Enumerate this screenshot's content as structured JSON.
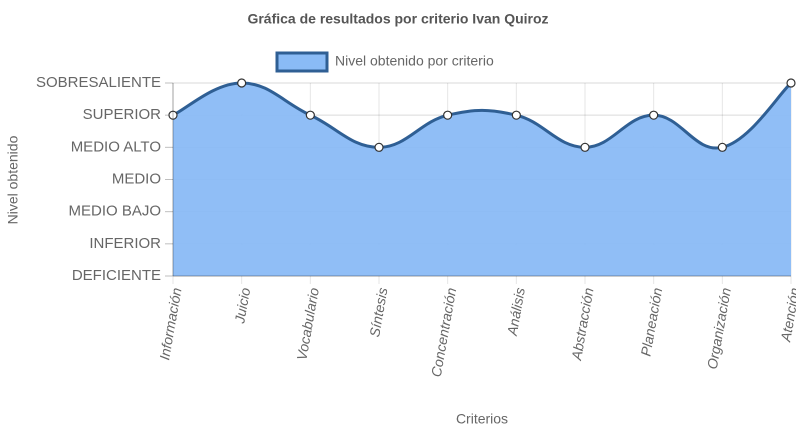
{
  "chart_data": {
    "type": "line",
    "title": "Gráfica de resultados por criterio Ivan Quiroz",
    "x_label": "Criterios",
    "y_label": "Nivel obtenido",
    "categories": [
      "Información",
      "Juicio",
      "Vocabulario",
      "Síntesis",
      "Concentración",
      "Análisis",
      "Abstracción",
      "Planeación",
      "Organización",
      "Atención"
    ],
    "series": [
      {
        "name": "Nivel obtenido por criterio",
        "color": "#2f5f94",
        "fill": "#8abbf6",
        "values": [
          5,
          6,
          5,
          4,
          5,
          5,
          4,
          5,
          4,
          6
        ]
      }
    ],
    "ylim": [
      0,
      6
    ],
    "yticks": [
      {
        "value": 0,
        "label": "DEFICIENTE"
      },
      {
        "value": 1,
        "label": "INFERIOR"
      },
      {
        "value": 2,
        "label": "MEDIO BAJO"
      },
      {
        "value": 3,
        "label": "MEDIO"
      },
      {
        "value": 4,
        "label": "MEDIO ALTO"
      },
      {
        "value": 5,
        "label": "SUPERIOR"
      },
      {
        "value": 6,
        "label": "SOBRESALIENTE"
      }
    ],
    "grid": true,
    "legend": "top"
  }
}
